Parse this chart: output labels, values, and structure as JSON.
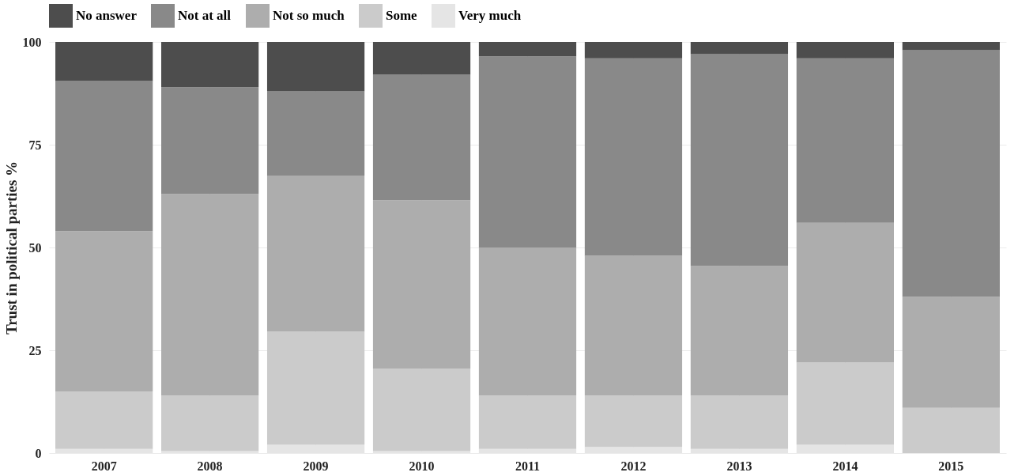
{
  "chart_data": {
    "type": "bar",
    "stacked": true,
    "ylabel": "Trust in political parties %",
    "categories": [
      "2007",
      "2008",
      "2009",
      "2010",
      "2011",
      "2012",
      "2013",
      "2014",
      "2015"
    ],
    "series": [
      {
        "name": "Very much",
        "color": "#e5e5e5",
        "values": [
          1,
          0.5,
          2,
          0.5,
          1,
          1.5,
          1,
          2,
          0
        ]
      },
      {
        "name": "Some",
        "color": "#cbcbcb",
        "values": [
          14,
          13.5,
          27.5,
          20,
          13,
          12.5,
          13,
          20,
          11
        ]
      },
      {
        "name": "Not so much",
        "color": "#adadad",
        "values": [
          39,
          49,
          38,
          41,
          36,
          34,
          31.5,
          34,
          27
        ]
      },
      {
        "name": "Not at all",
        "color": "#898989",
        "values": [
          36.5,
          26,
          20.5,
          30.5,
          46.5,
          48,
          51.5,
          40,
          60
        ]
      },
      {
        "name": "No answer",
        "color": "#4d4d4d",
        "values": [
          9.5,
          11,
          12,
          8,
          3.5,
          4,
          3,
          4,
          2
        ]
      }
    ],
    "ylim": [
      0,
      100
    ],
    "yticks": [
      0,
      25,
      50,
      75,
      100
    ],
    "grid": true,
    "legend": "top"
  }
}
